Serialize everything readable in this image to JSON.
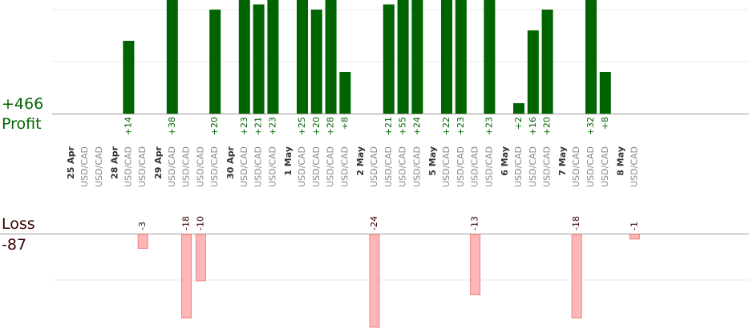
{
  "summary": {
    "profit_total": "+466",
    "profit_label": "Profit",
    "loss_label": "Loss",
    "loss_total": "-87"
  },
  "colors": {
    "profit_bar": "#006400",
    "loss_bar": "#ffb6b6",
    "loss_bar_edge": "#f08080",
    "profit_text": "#006400",
    "loss_text": "#3a0000",
    "grid": "#e8e8e8",
    "baseline": "#999999",
    "date_text": "#333333",
    "symbol_text": "#888888"
  },
  "chart_data": {
    "type": "bar",
    "title": "",
    "xlabel": "",
    "ylabel": "",
    "groups": [
      {
        "date": "25 Apr",
        "trades": [
          {
            "symbol": "USD/CAD",
            "value": null,
            "label": ""
          },
          {
            "symbol": "USD/CAD",
            "value": null,
            "label": ""
          }
        ]
      },
      {
        "date": "28 Apr",
        "trades": [
          {
            "symbol": "USD/CAD",
            "value": 14,
            "label": "+14"
          },
          {
            "symbol": "USD/CAD",
            "value": -3,
            "label": "-3"
          }
        ]
      },
      {
        "date": "29 Apr",
        "trades": [
          {
            "symbol": "USD/CAD",
            "value": 38,
            "label": "+38"
          },
          {
            "symbol": "USD/CAD",
            "value": -18,
            "label": "-18"
          },
          {
            "symbol": "USD/CAD",
            "value": -10,
            "label": "-10"
          },
          {
            "symbol": "USD/CAD",
            "value": 20,
            "label": "+20"
          }
        ]
      },
      {
        "date": "30 Apr",
        "trades": [
          {
            "symbol": "USD/CAD",
            "value": 23,
            "label": "+23"
          },
          {
            "symbol": "USD/CAD",
            "value": 21,
            "label": "+21"
          },
          {
            "symbol": "USD/CAD",
            "value": 23,
            "label": "+23"
          }
        ]
      },
      {
        "date": "1 May",
        "trades": [
          {
            "symbol": "USD/CAD",
            "value": 25,
            "label": "+25"
          },
          {
            "symbol": "USD/CAD",
            "value": 20,
            "label": "+20"
          },
          {
            "symbol": "USD/CAD",
            "value": 28,
            "label": "+28"
          },
          {
            "symbol": "USD/CAD",
            "value": 8,
            "label": "+8"
          }
        ]
      },
      {
        "date": "2 May",
        "trades": [
          {
            "symbol": "USD/CAD",
            "value": -24,
            "label": "-24"
          },
          {
            "symbol": "USD/CAD",
            "value": 21,
            "label": "+21"
          },
          {
            "symbol": "USD/CAD",
            "value": 55,
            "label": "+55"
          },
          {
            "symbol": "USD/CAD",
            "value": 24,
            "label": "+24"
          }
        ]
      },
      {
        "date": "5 May",
        "trades": [
          {
            "symbol": "USD/CAD",
            "value": 22,
            "label": "+22"
          },
          {
            "symbol": "USD/CAD",
            "value": 23,
            "label": "+23"
          },
          {
            "symbol": "USD/CAD",
            "value": -13,
            "label": "-13"
          },
          {
            "symbol": "USD/CAD",
            "value": 23,
            "label": "+23"
          }
        ]
      },
      {
        "date": "6 May",
        "trades": [
          {
            "symbol": "USD/CAD",
            "value": 2,
            "label": "+2"
          },
          {
            "symbol": "USD/CAD",
            "value": 16,
            "label": "+16"
          },
          {
            "symbol": "USD/CAD",
            "value": 20,
            "label": "+20"
          }
        ]
      },
      {
        "date": "7 May",
        "trades": [
          {
            "symbol": "USD/CAD",
            "value": -18,
            "label": "-18"
          },
          {
            "symbol": "USD/CAD",
            "value": 32,
            "label": "+32"
          },
          {
            "symbol": "USD/CAD",
            "value": 8,
            "label": "+8"
          }
        ]
      },
      {
        "date": "8 May",
        "trades": [
          {
            "symbol": "USD/CAD",
            "value": -1,
            "label": "-1"
          }
        ]
      }
    ]
  }
}
